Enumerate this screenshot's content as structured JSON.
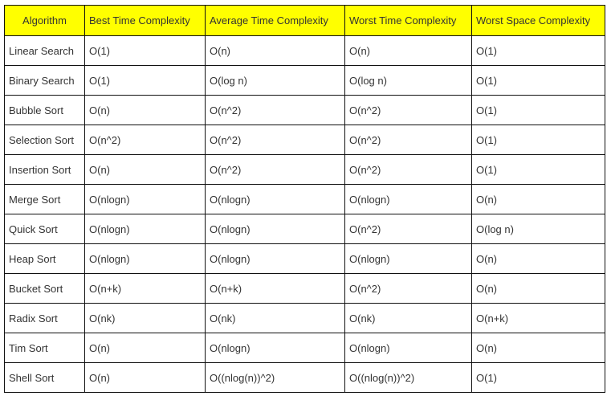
{
  "header_color": "#ffff00",
  "columns": [
    "Algorithm",
    "Best Time Complexity",
    "Average Time Complexity",
    "Worst Time Complexity",
    "Worst Space Complexity"
  ],
  "rows": [
    [
      "Linear Search",
      "O(1)",
      "O(n)",
      "O(n)",
      "O(1)"
    ],
    [
      "Binary Search",
      "O(1)",
      "O(log n)",
      "O(log n)",
      "O(1)"
    ],
    [
      "Bubble Sort",
      "O(n)",
      "O(n^2)",
      "O(n^2)",
      "O(1)"
    ],
    [
      "Selection Sort",
      "O(n^2)",
      "O(n^2)",
      "O(n^2)",
      "O(1)"
    ],
    [
      "Insertion Sort",
      "O(n)",
      "O(n^2)",
      "O(n^2)",
      "O(1)"
    ],
    [
      "Merge Sort",
      "O(nlogn)",
      "O(nlogn)",
      "O(nlogn)",
      "O(n)"
    ],
    [
      "Quick Sort",
      "O(nlogn)",
      "O(nlogn)",
      "O(n^2)",
      "O(log n)"
    ],
    [
      "Heap Sort",
      "O(nlogn)",
      "O(nlogn)",
      "O(nlogn)",
      "O(n)"
    ],
    [
      "Bucket Sort",
      "O(n+k)",
      "O(n+k)",
      "O(n^2)",
      "O(n)"
    ],
    [
      "Radix Sort",
      "O(nk)",
      "O(nk)",
      "O(nk)",
      "O(n+k)"
    ],
    [
      "Tim Sort",
      "O(n)",
      "O(nlogn)",
      "O(nlogn)",
      "O(n)"
    ],
    [
      "Shell Sort",
      "O(n)",
      "O((nlog(n))^2)",
      "O((nlog(n))^2)",
      "O(1)"
    ]
  ]
}
